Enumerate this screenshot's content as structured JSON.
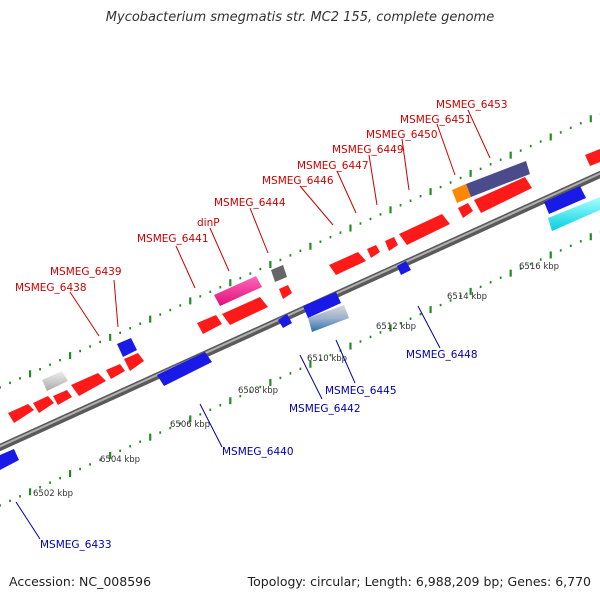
{
  "title": "Mycobacterium smegmatis str. MC2 155, complete genome",
  "footer": {
    "accession": "Accession: NC_008596",
    "stats": "Topology: circular; Length: 6,988,209 bp; Genes: 6,770"
  },
  "colors": {
    "forward_gene": "#ff1a1a",
    "reverse_gene": "#1a1ae6",
    "forward_label": "#cc0000",
    "reverse_label": "#0000aa",
    "backbone": "#7a7a7a",
    "tick_major": "#228b22",
    "pseudo_gene": "#c8c8c8",
    "highlight_pink": "#ff3399",
    "highlight_orange": "#ff8800",
    "highlight_purple": "#4b4b8c",
    "highlight_cyan": "#00e5ee",
    "highlight_steel": "#5a7fb0",
    "unknown_gene": "#666666"
  },
  "ticks": [
    "6502 kbp",
    "6504 kbp",
    "6506 kbp",
    "6508 kbp",
    "6510 kbp",
    "6512 kbp",
    "6514 kbp",
    "6516 kbp"
  ],
  "forward_labels": [
    "MSMEG_6438",
    "MSMEG_6439",
    "MSMEG_6441",
    "dinP",
    "MSMEG_6444",
    "MSMEG_6446",
    "MSMEG_6447",
    "MSMEG_6449",
    "MSMEG_6450",
    "MSMEG_6451",
    "MSMEG_6453"
  ],
  "reverse_labels": [
    "MSMEG_6433",
    "MSMEG_6440",
    "MSMEG_6442",
    "MSMEG_6445",
    "MSMEG_6448"
  ]
}
